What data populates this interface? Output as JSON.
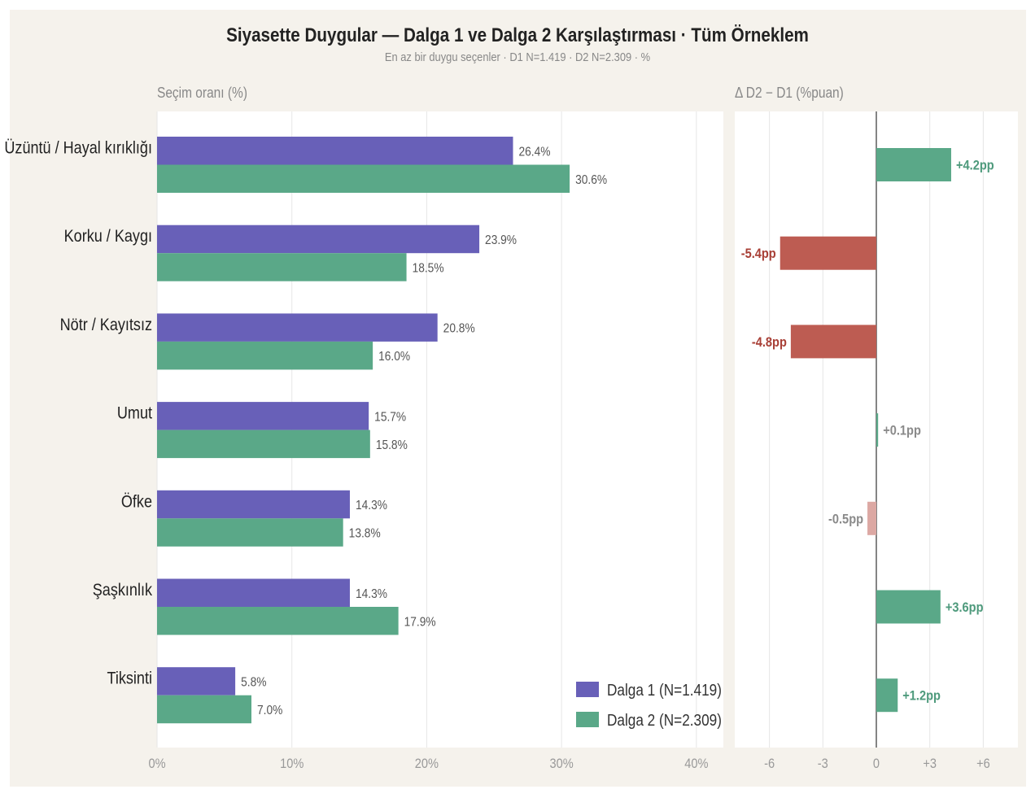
{
  "title": "Siyasette Duygular — Dalga 1 ve Dalga 2 Karşılaştırması · Tüm Örneklem",
  "subtitle": "En az bir duygu seçenler · D1 N=1.419 · D2 N=2.309 · %",
  "left_panel_label": "Seçim oranı (%)",
  "right_panel_label": "Δ D2 − D1 (%puan)",
  "colors": {
    "wave1": "#6860b8",
    "wave2": "#5aa888",
    "negative": "#bd5c52",
    "negative_light": "#dca8a3",
    "positive_label": "#4e9a7c",
    "negative_label": "#a83f36",
    "neutral_label": "#8a8a8a"
  },
  "chart_data": [
    {
      "type": "bar",
      "orientation": "horizontal",
      "categories": [
        "Üzüntü / Hayal kırıklığı",
        "Korku / Kaygı",
        "Nötr / Kayıtsız",
        "Umut",
        "Öfke",
        "Şaşkınlık",
        "Tiksinti"
      ],
      "series": [
        {
          "name": "Dalga 1  (N=1.419)",
          "values": [
            26.4,
            23.9,
            20.8,
            15.7,
            14.3,
            14.3,
            5.8
          ],
          "labels": [
            "26.4%",
            "23.9%",
            "20.8%",
            "15.7%",
            "14.3%",
            "14.3%",
            "5.8%"
          ]
        },
        {
          "name": "Dalga 2  (N=2.309)",
          "values": [
            30.6,
            18.5,
            16.0,
            15.8,
            13.8,
            17.9,
            7.0
          ],
          "labels": [
            "30.6%",
            "18.5%",
            "16.0%",
            "15.8%",
            "13.8%",
            "17.9%",
            "7.0%"
          ]
        }
      ],
      "xlim": [
        0,
        42
      ],
      "xticks": [
        0,
        10,
        20,
        30,
        40
      ],
      "xtick_labels": [
        "0%",
        "10%",
        "20%",
        "30%",
        "40%"
      ],
      "grid": true,
      "legend_position": "bottom-right"
    },
    {
      "type": "bar",
      "orientation": "horizontal",
      "categories": [
        "Üzüntü / Hayal kırıklığı",
        "Korku / Kaygı",
        "Nötr / Kayıtsız",
        "Umut",
        "Öfke",
        "Şaşkınlık",
        "Tiksinti"
      ],
      "values": [
        4.2,
        -5.4,
        -4.8,
        0.1,
        -0.5,
        3.6,
        1.2
      ],
      "labels": [
        "+4.2pp",
        "-5.4pp",
        "-4.8pp",
        "+0.1pp",
        "-0.5pp",
        "+3.6pp",
        "+1.2pp"
      ],
      "xlim": [
        -8,
        8
      ],
      "xticks": [
        -6,
        -3,
        0,
        3,
        6
      ],
      "xtick_labels": [
        "-6",
        "-3",
        "0",
        "+3",
        "+6"
      ],
      "grid": true
    }
  ]
}
